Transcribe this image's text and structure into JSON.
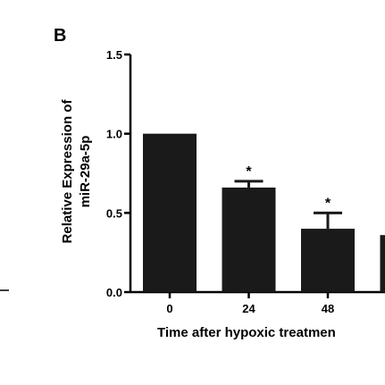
{
  "panel_label": "B",
  "chart_data": {
    "type": "bar",
    "categories": [
      "0",
      "24",
      "48",
      ""
    ],
    "values": [
      1.0,
      0.66,
      0.4,
      0.36
    ],
    "errors": [
      0,
      0.04,
      0.1,
      0
    ],
    "significance": [
      "",
      "*",
      "*",
      ""
    ],
    "xlabel": "Time after hypoxic treatmen",
    "ylabel": [
      "Relative Expression of",
      "miR-29a-5p"
    ],
    "ylim": [
      0,
      1.5
    ],
    "yticks": [
      "0.0",
      "0.5",
      "1.0",
      "1.5"
    ],
    "bar_color": "#1a1a1a",
    "grid": false
  }
}
